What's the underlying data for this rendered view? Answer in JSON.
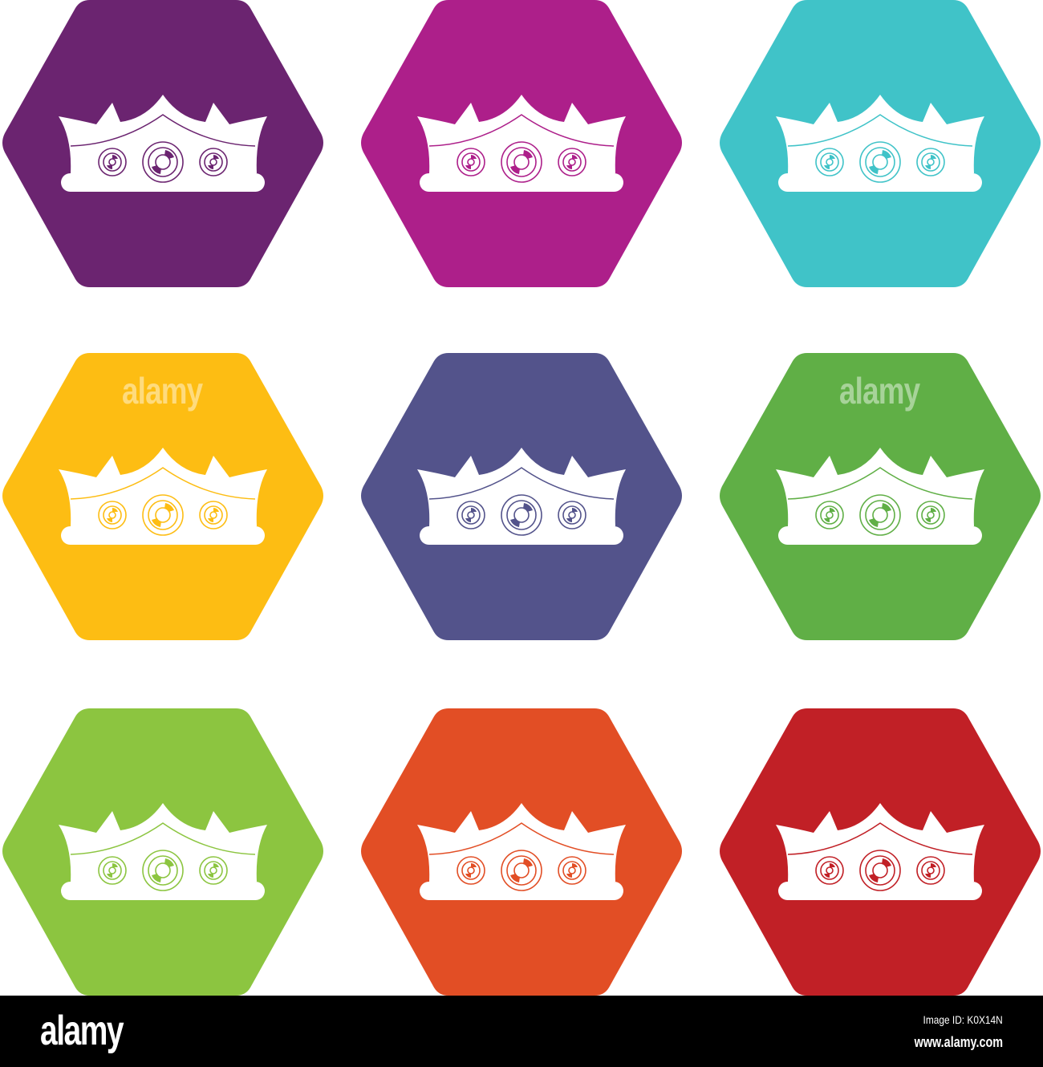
{
  "icons": [
    {
      "color": "#6b2470",
      "icon": "crown-icon"
    },
    {
      "color": "#ad1f8a",
      "icon": "crown-icon"
    },
    {
      "color": "#40c3c8",
      "icon": "crown-icon"
    },
    {
      "color": "#fdbd13",
      "icon": "crown-icon"
    },
    {
      "color": "#53538b",
      "icon": "crown-icon"
    },
    {
      "color": "#60af46",
      "icon": "crown-icon"
    },
    {
      "color": "#8cc540",
      "icon": "crown-icon"
    },
    {
      "color": "#e24e25",
      "icon": "crown-icon"
    },
    {
      "color": "#c12026",
      "icon": "crown-icon"
    }
  ],
  "watermark": "alamy",
  "footer": {
    "logo": "alamy",
    "image_id": "Image ID: K0X14N",
    "url": "www.alamy.com"
  }
}
